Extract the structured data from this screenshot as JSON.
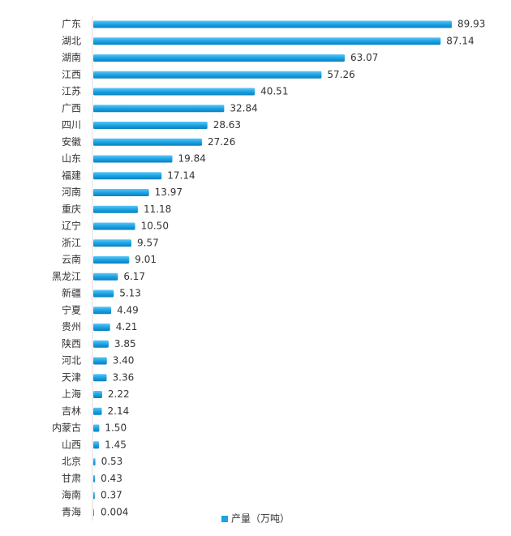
{
  "chart_data": {
    "type": "bar",
    "orientation": "horizontal",
    "color": "#1aa3e6",
    "categories": [
      "广东",
      "湖北",
      "湖南",
      "江西",
      "江苏",
      "广西",
      "四川",
      "安徽",
      "山东",
      "福建",
      "河南",
      "重庆",
      "辽宁",
      "浙江",
      "云南",
      "黑龙江",
      "新疆",
      "宁夏",
      "贵州",
      "陕西",
      "河北",
      "天津",
      "上海",
      "吉林",
      "内蒙古",
      "山西",
      "北京",
      "甘肃",
      "海南",
      "青海"
    ],
    "series": [
      {
        "name": "产量（万吨）",
        "color": "#1aa3e6",
        "values": [
          89.93,
          87.14,
          63.07,
          57.26,
          40.51,
          32.84,
          28.63,
          27.26,
          19.84,
          17.14,
          13.97,
          11.18,
          10.5,
          9.57,
          9.01,
          6.17,
          5.13,
          4.49,
          4.21,
          3.85,
          3.4,
          3.36,
          2.22,
          2.14,
          1.5,
          1.45,
          0.53,
          0.43,
          0.37,
          0.004
        ],
        "value_labels": [
          "89.93",
          "87.14",
          "63.07",
          "57.26",
          "40.51",
          "32.84",
          "28.63",
          "27.26",
          "19.84",
          "17.14",
          "13.97",
          "11.18",
          "10.50",
          "9.57",
          "9.01",
          "6.17",
          "5.13",
          "4.49",
          "4.21",
          "3.85",
          "3.40",
          "3.36",
          "2.22",
          "2.14",
          "1.50",
          "1.45",
          "0.53",
          "0.43",
          "0.37",
          "0.004"
        ]
      }
    ],
    "legend": "bottom"
  }
}
